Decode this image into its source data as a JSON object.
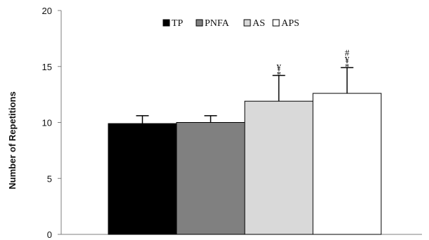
{
  "chart_data": {
    "type": "bar",
    "categories": [
      "TP",
      "PNFA",
      "AS",
      "APS"
    ],
    "series": [
      {
        "name": "Number of Repetitions",
        "values": [
          9.9,
          10.0,
          11.9,
          12.6
        ],
        "error_plus": [
          0.7,
          0.6,
          2.3,
          2.3
        ]
      }
    ],
    "title": "",
    "xlabel": "",
    "ylabel": "Number of Repetitions",
    "ylim": [
      0,
      20
    ],
    "yticks": [
      0,
      5,
      10,
      15,
      20
    ],
    "yticklabels": [
      "0",
      "5",
      "10",
      "15",
      "20"
    ],
    "grid": false,
    "legend": {
      "position": "top-center",
      "entries": [
        "TP",
        "PNFA",
        "AS",
        "APS"
      ]
    },
    "bar_colors": [
      "#000000",
      "#808080",
      "#d9d9d9",
      "#ffffff"
    ],
    "annotations": [
      {
        "category": "AS",
        "lines": [
          "¥",
          "*"
        ]
      },
      {
        "category": "APS",
        "lines": [
          "#",
          "¥",
          "*"
        ]
      }
    ]
  }
}
